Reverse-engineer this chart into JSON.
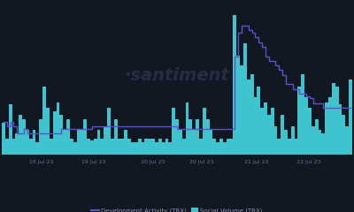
{
  "background_color": "#131722",
  "bar_color": "#3fc4cf",
  "line_color": "#5b52cc",
  "watermark_color": "#252d45",
  "watermark_text": "·santiment",
  "x_tick_labels": [
    "18 Jul 23",
    "19 Jul 23",
    "20 Jul 23",
    "20 Jul 23",
    "21 Jul 23",
    "22 Jul 23"
  ],
  "legend_items": [
    "Development Activity (TRX)",
    "Social Volume (TRX)"
  ],
  "social_volume": [
    18,
    9,
    28,
    9,
    12,
    22,
    20,
    14,
    9,
    14,
    7,
    20,
    38,
    26,
    9,
    24,
    29,
    22,
    14,
    20,
    9,
    7,
    14,
    14,
    20,
    9,
    8,
    9,
    14,
    9,
    16,
    26,
    9,
    20,
    9,
    9,
    14,
    9,
    7,
    7,
    9,
    7,
    9,
    9,
    9,
    7,
    9,
    7,
    9,
    7,
    26,
    20,
    14,
    9,
    29,
    20,
    14,
    20,
    9,
    26,
    20,
    14,
    9,
    7,
    9,
    7,
    9,
    9,
    78,
    55,
    50,
    62,
    42,
    45,
    32,
    38,
    26,
    29,
    22,
    26,
    16,
    9,
    22,
    14,
    9,
    16,
    9,
    38,
    45,
    32,
    26,
    16,
    20,
    14,
    12,
    29,
    32,
    40,
    38,
    28,
    22,
    16,
    42
  ],
  "dev_activity": [
    14,
    12,
    14,
    12,
    9,
    9,
    11,
    9,
    9,
    9,
    9,
    9,
    9,
    9,
    9,
    9,
    9,
    11,
    11,
    11,
    11,
    11,
    11,
    11,
    11,
    11,
    12,
    12,
    12,
    12,
    12,
    12,
    12,
    12,
    12,
    12,
    12,
    12,
    12,
    12,
    12,
    12,
    12,
    12,
    12,
    12,
    12,
    12,
    12,
    12,
    12,
    11,
    11,
    11,
    11,
    11,
    11,
    11,
    11,
    11,
    11,
    11,
    11,
    11,
    11,
    11,
    11,
    11,
    42,
    52,
    55,
    55,
    53,
    52,
    50,
    48,
    46,
    42,
    40,
    40,
    38,
    36,
    34,
    30,
    30,
    28,
    28,
    26,
    26,
    25,
    24,
    22,
    22,
    22,
    20,
    20,
    20,
    20,
    20,
    20,
    20,
    20,
    20
  ],
  "ylim_bars": [
    0,
    85
  ],
  "ylim_line": [
    0,
    65
  ],
  "x_tick_positions_norm": [
    0.11,
    0.26,
    0.43,
    0.57,
    0.73,
    0.88
  ]
}
